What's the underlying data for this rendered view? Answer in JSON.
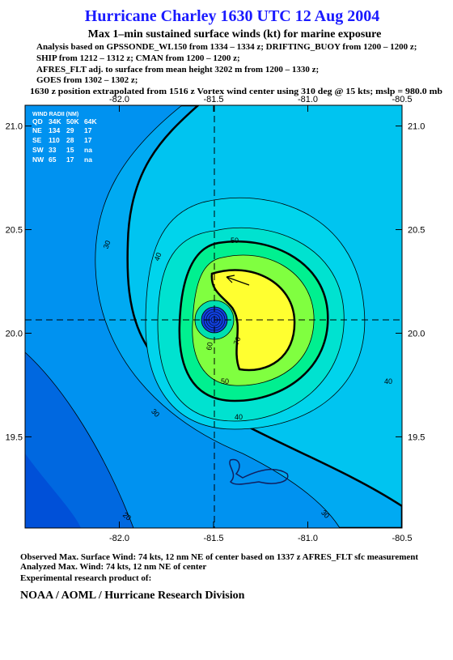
{
  "header": {
    "title": "Hurricane Charley 1630 UTC 12 Aug 2004",
    "subtitle": "Max 1–min sustained surface winds (kt) for marine exposure",
    "analysis": [
      "Analysis based on  GPSSONDE_WL150 from 1334 – 1334 z;  DRIFTING_BUOY from 1200 – 1200 z;",
      "SHIP from 1212 – 1312 z;  CMAN from 1200 – 1200 z;",
      "AFRES_FLT adj. to surface from mean height 3202 m from 1200 – 1330 z;",
      "GOES from 1302 – 1302 z;",
      "1630 z position extrapolated from 1516 z Vortex wind center using 310 deg @ 15 kts; mslp = 980.0 mb"
    ]
  },
  "map": {
    "xlim": [
      -82.5,
      -80.5
    ],
    "ylim": [
      19.06,
      21.1
    ],
    "xticks": [
      {
        "value": -82,
        "label": "-82.0"
      },
      -81.5,
      {
        "value": -81,
        "label": "-81.0"
      },
      -80.5
    ],
    "yticks": [
      {
        "value": 21,
        "label": "21.0"
      },
      20.5,
      {
        "value": 20,
        "label": "20.0"
      },
      19.5
    ],
    "contour_labels": [
      50,
      40,
      30,
      40,
      50,
      40,
      30,
      30,
      20,
      70,
      60
    ]
  },
  "wind_radii": {
    "title": "WIND RADII (NM)",
    "columns": [
      "QD",
      "34K",
      "50K",
      "64K"
    ],
    "rows": [
      [
        "NE",
        134,
        29,
        17
      ],
      [
        "SE",
        110,
        28,
        17
      ],
      [
        "SW",
        33,
        15,
        "na"
      ],
      [
        "NW",
        65,
        17,
        "na"
      ]
    ]
  },
  "footer": {
    "observed": "Observed Max. Surface Wind: 74 kts, 12 nm NE of center based on 1337 z AFRES_FLT sfc measurement",
    "analyzed": "Analyzed Max. Wind: 74 kts, 12 nm NE of center",
    "note": "Experimental research product of:",
    "org": "NOAA / AOML / Hurricane Research Division"
  }
}
